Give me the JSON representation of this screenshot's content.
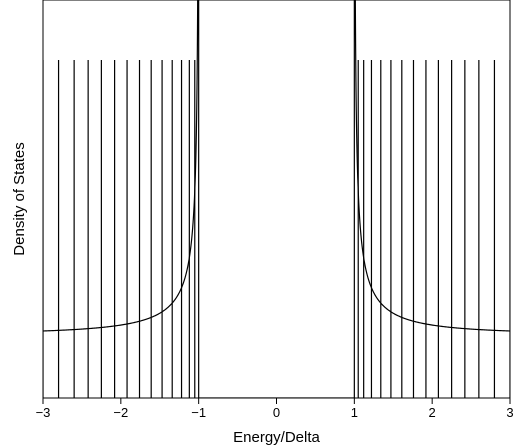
{
  "chart_data": {
    "type": "line",
    "title": "",
    "xlabel": "Energy/Delta",
    "ylabel": "Density of States",
    "xlim": [
      -3,
      3
    ],
    "ylim": [
      0,
      6.3
    ],
    "grid": false,
    "legend": "none",
    "x_ticks": [
      -3,
      -2,
      -1,
      0,
      1,
      2,
      3
    ],
    "x_tick_labels": [
      "−3",
      "−2",
      "−1",
      "0",
      "1",
      "2",
      "3"
    ],
    "y_ticks_shown": false,
    "series": [
      {
        "kind": "bcs-density-of-states-curve",
        "formula": "|E| / sqrt(E^2 - 1)",
        "gap_edges": [
          -1,
          1
        ],
        "color": "#000000"
      },
      {
        "kind": "vertical-energy-level-lines",
        "height": 5.35,
        "positions": [
          -3.0,
          -2.8,
          -2.6,
          -2.42,
          -2.25,
          -2.08,
          -1.92,
          -1.76,
          -1.61,
          -1.47,
          -1.34,
          -1.22,
          -1.12,
          -1.05,
          1.05,
          1.12,
          1.22,
          1.34,
          1.47,
          1.61,
          1.76,
          1.92,
          2.08,
          2.25,
          2.42,
          2.6,
          2.8,
          3.0
        ],
        "color": "#000000"
      }
    ]
  }
}
